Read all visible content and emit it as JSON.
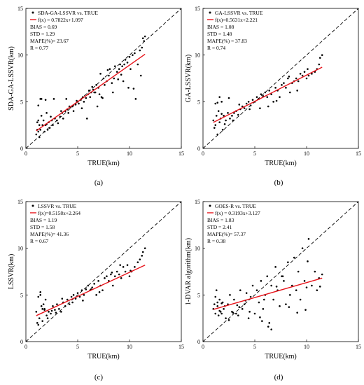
{
  "chart_data": [
    {
      "type": "scatter",
      "panel_label": "(a)",
      "xlabel": "TRUE(km)",
      "ylabel": "SDA-GA-LSSVR(km)",
      "xlim": [
        0,
        15
      ],
      "ylim": [
        0,
        15
      ],
      "xticks": [
        "0",
        "5",
        "10",
        "15"
      ],
      "yticks": [
        "0",
        "5",
        "10",
        "15"
      ],
      "legend": {
        "points": "SDA-GA-LSSVR vs. TRUE",
        "fit": "f(x) = 0.7822x+1.097",
        "stats": [
          "BIAS = 0.69",
          "STD = 1.29",
          "MAPE(%)= 23.67",
          "R = 0.77"
        ]
      },
      "fit": {
        "slope": 0.7822,
        "intercept": 1.097,
        "x_range": [
          1,
          11.5
        ]
      },
      "reference_line": "1:1 dashed",
      "series": [
        {
          "x": [
            1.0,
            1.1,
            1.1,
            1.2,
            1.2,
            1.3,
            1.3,
            1.4,
            1.5,
            1.6,
            1.7,
            1.8,
            1.9,
            2.0,
            2.0,
            2.2,
            2.3,
            2.5,
            2.6,
            2.8,
            3.0,
            3.1,
            3.3,
            3.5,
            3.6,
            3.8,
            4.0,
            4.1,
            4.3,
            4.5,
            4.6,
            4.8,
            5.0,
            5.1,
            5.3,
            5.5,
            5.6,
            5.8,
            6.0,
            6.1,
            6.2,
            6.3,
            6.5,
            6.6,
            6.8,
            7.0,
            7.1,
            7.3,
            7.5,
            7.6,
            7.8,
            8.0,
            8.1,
            8.3,
            8.5,
            8.6,
            8.8,
            9.0,
            9.1,
            9.3,
            9.5,
            9.6,
            9.8,
            10.0,
            10.1,
            10.3,
            10.5,
            10.8,
            11.0,
            11.2,
            11.4,
            11.5,
            1.2,
            1.5,
            2.1,
            2.7,
            3.4,
            4.2,
            4.9,
            5.4,
            5.9,
            6.4,
            6.9,
            7.4,
            7.9,
            8.4,
            8.9,
            9.4,
            9.9,
            10.4,
            11.1,
            1.4,
            1.9,
            3.9,
            6.7,
            7.2,
            9.2,
            10.6,
            11.3,
            2.4
          ],
          "y": [
            1.5,
            2.0,
            2.8,
            1.8,
            3.0,
            2.5,
            1.2,
            2.0,
            3.5,
            2.5,
            3.0,
            1.8,
            2.5,
            2.6,
            3.8,
            2.8,
            2.2,
            3.0,
            2.5,
            3.2,
            3.0,
            2.7,
            3.4,
            3.8,
            3.2,
            4.0,
            4.2,
            3.8,
            4.4,
            4.5,
            4.0,
            4.7,
            5.0,
            4.8,
            5.2,
            5.5,
            5.0,
            5.4,
            5.8,
            6.2,
            5.5,
            6.0,
            6.3,
            6.0,
            6.8,
            6.5,
            5.8,
            5.5,
            7.5,
            6.8,
            7.2,
            7.8,
            8.5,
            7.0,
            7.5,
            8.8,
            8.2,
            8.5,
            9.0,
            8.8,
            9.0,
            9.5,
            9.2,
            9.8,
            8.5,
            10.0,
            10.2,
            9.0,
            10.5,
            10.8,
            11.5,
            12.0,
            4.6,
            5.3,
            2.0,
            5.3,
            4.0,
            4.5,
            5.1,
            4.3,
            3.2,
            6.6,
            4.5,
            5.4,
            8.4,
            6.0,
            7.4,
            7.2,
            6.5,
            6.4,
            7.8,
            5.3,
            5.2,
            5.3,
            6.0,
            8.0,
            7.9,
            5.3,
            11.8,
            3.4
          ]
        }
      ]
    },
    {
      "type": "scatter",
      "panel_label": "(b)",
      "xlabel": "TRUE(km)",
      "ylabel": "GA-LSSVR(km)",
      "xlim": [
        0,
        15
      ],
      "ylim": [
        0,
        15
      ],
      "xticks": [
        "0",
        "5",
        "10",
        "15"
      ],
      "yticks": [
        "0",
        "5",
        "10",
        "15"
      ],
      "legend": {
        "points": "GA-LSSVR vs. TRUE",
        "fit": "f(x)=0.5631x+2.221",
        "stats": [
          "BIAS = 1.08",
          "STD = 1.48",
          "MAPE(%) = 37.83",
          "R = 0.74"
        ]
      },
      "fit": {
        "slope": 0.5631,
        "intercept": 2.221,
        "x_range": [
          1,
          11.5
        ]
      },
      "reference_line": "1:1 dashed",
      "series": [
        {
          "x": [
            1.0,
            1.1,
            1.2,
            1.3,
            1.4,
            1.5,
            1.6,
            1.7,
            1.8,
            1.9,
            2.0,
            2.2,
            2.4,
            2.6,
            2.8,
            3.0,
            3.2,
            3.4,
            3.6,
            3.8,
            4.0,
            4.2,
            4.4,
            4.6,
            4.8,
            5.0,
            5.2,
            5.4,
            5.6,
            5.8,
            6.0,
            6.2,
            6.4,
            6.6,
            6.8,
            7.0,
            7.2,
            7.4,
            7.6,
            7.8,
            8.0,
            8.2,
            8.4,
            8.6,
            8.8,
            9.0,
            9.2,
            9.4,
            9.6,
            9.8,
            10.0,
            10.2,
            10.5,
            10.8,
            11.0,
            11.2,
            11.5,
            1.2,
            1.6,
            2.1,
            2.9,
            3.5,
            4.5,
            5.5,
            6.3,
            7.1,
            8.3,
            9.1,
            10.1,
            11.3,
            1.4,
            1.8,
            2.5
          ],
          "y": [
            3.0,
            2.2,
            4.8,
            3.5,
            1.5,
            4.0,
            2.8,
            3.2,
            5.0,
            2.0,
            3.5,
            3.0,
            3.8,
            3.2,
            3.5,
            3.8,
            4.0,
            3.6,
            4.2,
            4.5,
            4.3,
            4.8,
            5.0,
            4.6,
            5.2,
            5.0,
            5.5,
            5.3,
            5.8,
            5.6,
            6.0,
            5.5,
            6.2,
            5.8,
            5.0,
            6.5,
            6.2,
            5.5,
            6.8,
            7.0,
            6.5,
            7.5,
            6.0,
            7.0,
            7.2,
            7.5,
            7.2,
            8.0,
            7.8,
            8.2,
            7.5,
            7.8,
            8.0,
            8.2,
            8.5,
            9.0,
            10.0,
            2.5,
            5.5,
            2.6,
            3.0,
            4.7,
            4.2,
            4.3,
            4.5,
            5.1,
            7.7,
            6.2,
            8.5,
            9.7,
            4.9,
            3.7,
            5.4
          ]
        }
      ]
    },
    {
      "type": "scatter",
      "panel_label": "(c)",
      "xlabel": "TRUE(km)",
      "ylabel": "LSSVR(km)",
      "xlim": [
        0,
        15
      ],
      "ylim": [
        0,
        15
      ],
      "xticks": [
        "0",
        "5",
        "10",
        "15"
      ],
      "yticks": [
        "0",
        "5",
        "10",
        "15"
      ],
      "legend": {
        "points": "LSSVR vs. TRUE",
        "fit": "f(x)=0.5158x+2.264",
        "stats": [
          "BIAS = 1.19",
          "STD = 1.58",
          "MAPE(%)= 41.36",
          "R = 0.67"
        ]
      },
      "fit": {
        "slope": 0.5158,
        "intercept": 2.264,
        "x_range": [
          1,
          11.5
        ]
      },
      "reference_line": "1:1 dashed",
      "series": [
        {
          "x": [
            1.0,
            1.1,
            1.2,
            1.3,
            1.4,
            1.5,
            1.6,
            1.7,
            1.8,
            1.9,
            2.0,
            2.2,
            2.4,
            2.6,
            2.8,
            3.0,
            3.2,
            3.4,
            3.6,
            3.8,
            4.0,
            4.2,
            4.4,
            4.6,
            4.8,
            5.0,
            5.2,
            5.4,
            5.6,
            5.8,
            6.0,
            6.2,
            6.4,
            6.6,
            6.8,
            7.0,
            7.2,
            7.4,
            7.6,
            7.8,
            8.0,
            8.2,
            8.4,
            8.6,
            8.8,
            9.0,
            9.2,
            9.4,
            9.6,
            9.8,
            10.0,
            10.2,
            10.5,
            10.8,
            11.0,
            11.2,
            11.5,
            1.2,
            1.6,
            2.1,
            2.9,
            3.5,
            4.5,
            5.5,
            6.3,
            7.1,
            8.3,
            9.1,
            10.1,
            11.3,
            1.4,
            1.8,
            2.5
          ],
          "y": [
            3.2,
            2.0,
            4.8,
            2.5,
            5.0,
            3.8,
            2.2,
            4.0,
            3.5,
            4.5,
            2.8,
            3.2,
            3.0,
            3.8,
            3.4,
            4.0,
            3.5,
            3.2,
            4.2,
            3.8,
            4.5,
            4.0,
            4.8,
            5.0,
            4.6,
            5.2,
            4.8,
            5.5,
            5.0,
            5.6,
            6.0,
            5.5,
            5.8,
            6.2,
            5.0,
            6.5,
            6.0,
            5.5,
            6.8,
            7.0,
            6.5,
            7.2,
            6.0,
            7.0,
            7.5,
            7.2,
            6.8,
            8.0,
            7.5,
            8.2,
            7.0,
            7.5,
            8.0,
            8.5,
            8.8,
            9.2,
            10.0,
            1.8,
            3.5,
            2.5,
            3.1,
            4.6,
            4.2,
            4.4,
            5.6,
            5.3,
            7.4,
            8.2,
            7.6,
            9.6,
            5.3,
            3.4,
            3.3
          ]
        }
      ]
    },
    {
      "type": "scatter",
      "panel_label": "(d)",
      "xlabel": "TRUE(km)",
      "ylabel": "1-DVAR algorithm(km)",
      "xlim": [
        0,
        15
      ],
      "ylim": [
        0,
        15
      ],
      "xticks": [
        "0",
        "5",
        "10",
        "15"
      ],
      "yticks": [
        "0",
        "5",
        "10",
        "15"
      ],
      "legend": {
        "points": "GOES-R vs. TRUE",
        "fit": "f(x) = 0.3193x+3.127",
        "stats": [
          "BIAS = 1.83",
          "STD = 2.41",
          "MAPE(%)= 57.37",
          "R = 0.38"
        ]
      },
      "fit": {
        "slope": 0.3193,
        "intercept": 3.127,
        "x_range": [
          1,
          11.5
        ]
      },
      "reference_line": "1:1 dashed",
      "series": [
        {
          "x": [
            1.0,
            1.1,
            1.2,
            1.3,
            1.4,
            1.5,
            1.6,
            1.7,
            1.8,
            1.9,
            2.0,
            2.2,
            2.4,
            2.6,
            2.8,
            3.0,
            3.2,
            3.4,
            3.6,
            3.8,
            4.0,
            4.2,
            4.4,
            4.6,
            4.8,
            5.0,
            5.2,
            5.4,
            5.6,
            5.8,
            6.0,
            6.2,
            6.4,
            6.6,
            6.8,
            7.0,
            7.2,
            7.4,
            7.6,
            7.8,
            8.0,
            8.2,
            8.4,
            8.6,
            8.8,
            9.0,
            9.2,
            9.4,
            9.6,
            9.8,
            10.0,
            10.2,
            10.5,
            10.8,
            11.0,
            11.2,
            11.5,
            1.2,
            1.6,
            2.1,
            2.9,
            3.5,
            4.5,
            5.5,
            6.3,
            7.1,
            8.3,
            9.1,
            10.1,
            11.3,
            1.4,
            1.8,
            2.5,
            5.9,
            6.6,
            7.7,
            9.9,
            3.3,
            4.1,
            5.7
          ],
          "y": [
            3.5,
            4.0,
            3.0,
            5.5,
            3.8,
            2.8,
            4.5,
            3.2,
            3.0,
            4.2,
            3.5,
            2.5,
            4.0,
            5.0,
            3.2,
            4.5,
            3.0,
            2.8,
            5.5,
            3.5,
            4.0,
            5.2,
            2.5,
            4.8,
            6.0,
            3.0,
            5.5,
            4.2,
            6.5,
            3.5,
            5.0,
            7.0,
            2.0,
            6.0,
            4.5,
            8.0,
            5.5,
            3.8,
            7.0,
            6.5,
            4.0,
            8.5,
            5.0,
            6.0,
            9.0,
            5.5,
            7.5,
            4.5,
            10.0,
            6.5,
            5.8,
            11.0,
            6.0,
            7.5,
            5.5,
            6.8,
            7.2,
            4.8,
            3.3,
            3.8,
            3.1,
            3.7,
            3.2,
            2.6,
            1.6,
            5.9,
            3.7,
            3.1,
            8.6,
            5.9,
            4.2,
            4.1,
            2.3,
            4.5,
            1.3,
            7.0,
            3.4,
            3.9,
            4.4,
            2.2
          ]
        }
      ]
    }
  ]
}
